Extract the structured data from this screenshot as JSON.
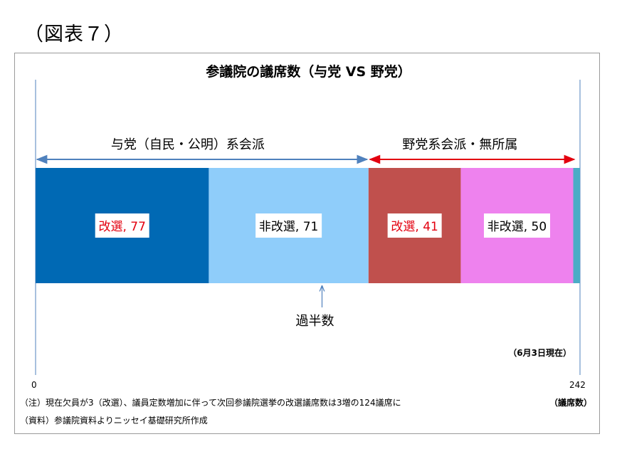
{
  "figure_label": "（図表７）",
  "chart_data": {
    "type": "bar",
    "orientation": "horizontal-stacked",
    "title": "参議院の議席数（与党 VS 野党）",
    "xlim": [
      0,
      242
    ],
    "ticks": [
      "0",
      "242"
    ],
    "unit_label": "（議席数）",
    "segments": [
      {
        "name": "改選",
        "value": 77,
        "label": "改選, 77",
        "text": "改選",
        "num": "77",
        "color": "#0069b4",
        "label_color": "#e3000f",
        "group": "ruling"
      },
      {
        "name": "非改選",
        "value": 71,
        "label": "非改選, 71",
        "text": "非改選",
        "num": "71",
        "color": "#8fcdfa",
        "label_color": "#000000",
        "group": "ruling"
      },
      {
        "name": "改選",
        "value": 41,
        "label": "改選, 41",
        "text": "改選",
        "num": "41",
        "color": "#c0504d",
        "label_color": "#e3000f",
        "group": "opposition"
      },
      {
        "name": "非改選",
        "value": 50,
        "label": "非改選, 50",
        "text": "非改選",
        "num": "50",
        "color": "#ee82ee",
        "label_color": "#000000",
        "group": "opposition"
      },
      {
        "name": "",
        "value": 3,
        "label": "",
        "text": "",
        "num": "",
        "color": "#4bacc6",
        "label_color": "#000000",
        "group": "vacant"
      }
    ],
    "groups": [
      {
        "id": "ruling",
        "label": "与党（自民・公明）系会派",
        "color": "#4f81bd"
      },
      {
        "id": "opposition",
        "label": "野党系会派・無所属",
        "color": "#e3000f"
      }
    ],
    "majority": {
      "label": "過半数"
    },
    "as_of": "（6月3日現在）"
  },
  "notes": {
    "note1": "（注）現在欠員が3（改選）、議員定数増加に伴って次回参議院選挙の改選議席数は3増の124議席に",
    "source": "（資料）参議院資料よりニッセイ基礎研究所作成"
  }
}
